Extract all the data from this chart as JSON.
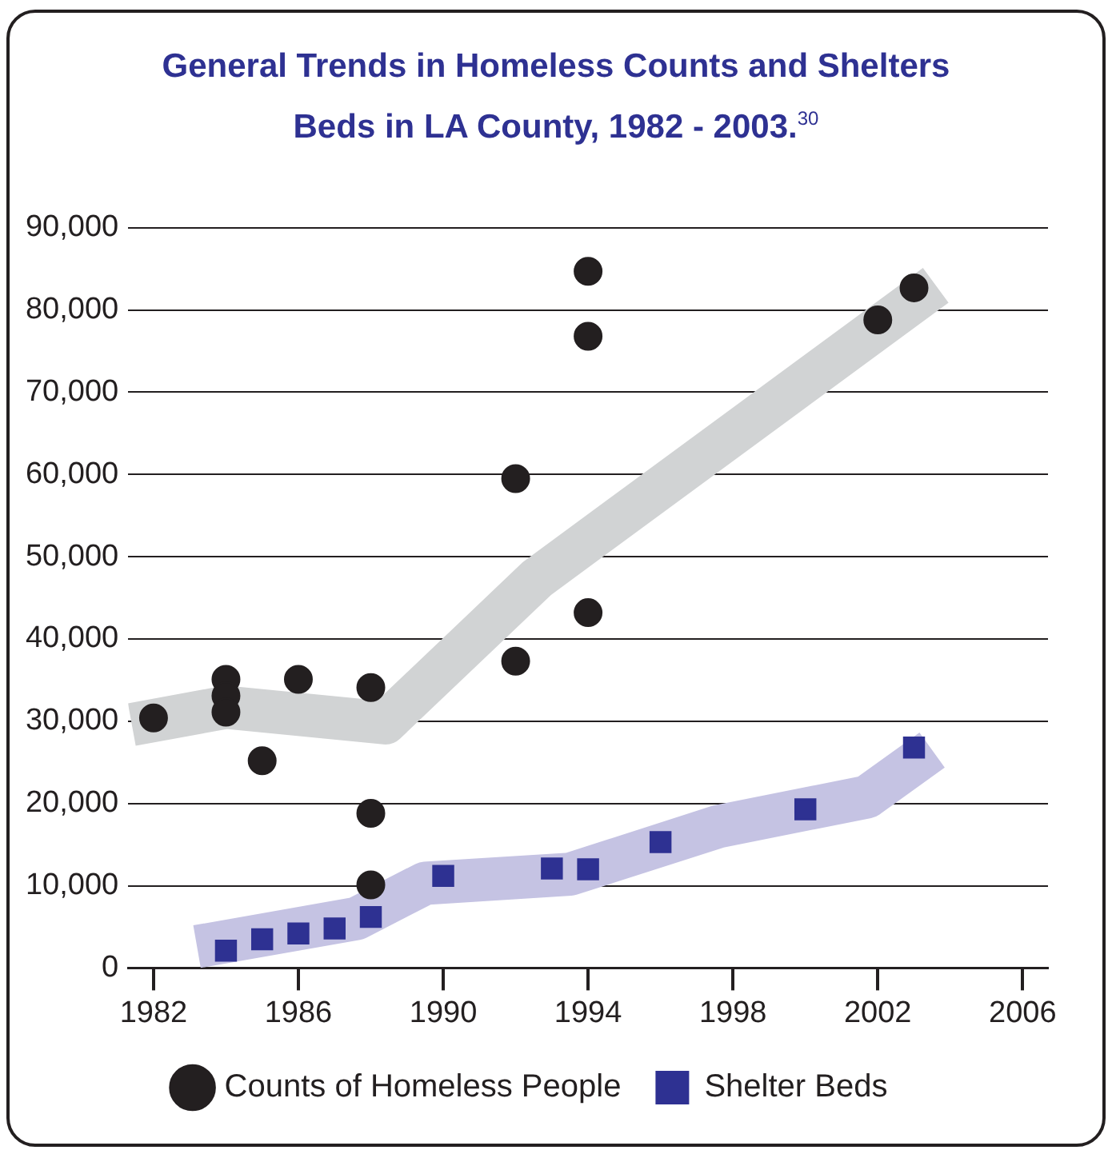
{
  "chart_data": {
    "type": "scatter",
    "title": "General Trends in Homeless Counts and Shelters Beds  in LA County, 1982 - 2003.$^{30}$",
    "series": [
      {
        "type": "line",
        "color": "#d1d3d4",
        "x": [
          1981.4,
          1984,
          1988.4,
          1992.6,
          2003.6
        ],
        "values": [
          29600,
          31700,
          29800,
          47400,
          83000
        ]
      },
      {
        "type": "line",
        "color": "#c5c3e3",
        "x": [
          1983.2,
          1987.6,
          1989.5,
          1993.5,
          1997.6,
          2001.7,
          2003.5
        ],
        "values": [
          2600,
          6000,
          10300,
          11400,
          17200,
          20800,
          26500
        ]
      },
      {
        "name": "Counts of Homeless People",
        "color": "#231f20",
        "marker": "circle",
        "x": [
          1982,
          1984,
          1984,
          1984,
          1985,
          1986,
          1988,
          1988,
          1988,
          1992,
          1992,
          1994,
          1994,
          1994,
          2002,
          2003
        ],
        "values": [
          30400,
          35100,
          33100,
          31100,
          25200,
          35100,
          34100,
          18800,
          10100,
          37300,
          59500,
          43200,
          76800,
          84700,
          78800,
          82700
        ]
      },
      {
        "name": "Shelter Beds",
        "color": "#2e3192",
        "marker": "square",
        "x": [
          1984,
          1985,
          1986,
          1987,
          1988,
          1990,
          1993,
          1994,
          1996,
          2000,
          2003
        ],
        "values": [
          2100,
          3500,
          4200,
          4800,
          6200,
          11200,
          12100,
          12000,
          15300,
          19300,
          26800
        ]
      }
    ],
    "xlim": [
      1981.3,
      2006.7
    ],
    "xticks": [
      1982,
      1986,
      1990,
      1994,
      1998,
      2002,
      2006
    ],
    "ylim": [
      0,
      90000
    ],
    "yticks": [
      0,
      {
        "value": 10000,
        "label": "10,000"
      },
      {
        "value": 20000,
        "label": "20,000"
      },
      {
        "value": 30000,
        "label": "30,000"
      },
      {
        "value": 40000,
        "label": "40,000"
      },
      {
        "value": 50000,
        "label": "50,000"
      },
      {
        "value": 60000,
        "label": "60,000"
      },
      {
        "value": 70000,
        "label": "70,000"
      },
      {
        "value": 80000,
        "label": "80,000"
      },
      {
        "value": 90000,
        "label": "90,000"
      }
    ],
    "grid": "y",
    "legend": "bottom"
  }
}
